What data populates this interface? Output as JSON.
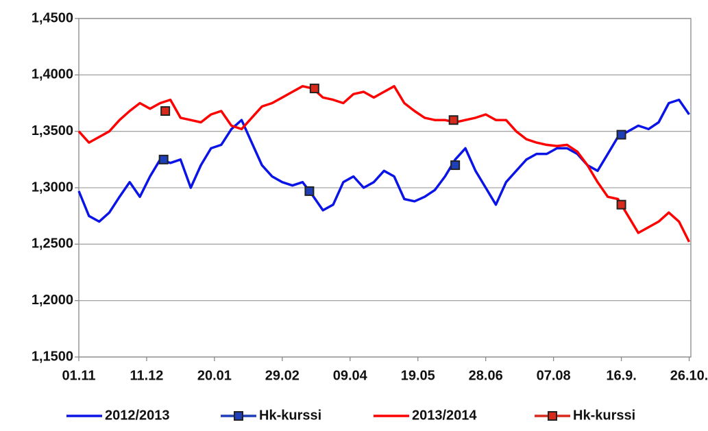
{
  "chart_data": {
    "type": "line",
    "xlim": [
      0,
      361
    ],
    "xticks": [
      {
        "value": 0,
        "label": "01.11"
      },
      {
        "value": 40,
        "label": "11.12"
      },
      {
        "value": 80,
        "label": "20.01"
      },
      {
        "value": 120,
        "label": "29.02"
      },
      {
        "value": 160,
        "label": "09.04"
      },
      {
        "value": 200,
        "label": "19.05"
      },
      {
        "value": 240,
        "label": "28.06"
      },
      {
        "value": 280,
        "label": "07.08"
      },
      {
        "value": 320,
        "label": "16.9."
      },
      {
        "value": 360,
        "label": "26.10."
      }
    ],
    "ylim": [
      1.15,
      1.45
    ],
    "yticks": [
      {
        "value": 1.15,
        "label": "1,1500"
      },
      {
        "value": 1.2,
        "label": "1,2000"
      },
      {
        "value": 1.25,
        "label": "1,2500"
      },
      {
        "value": 1.3,
        "label": "1,3000"
      },
      {
        "value": 1.35,
        "label": "1,3500"
      },
      {
        "value": 1.4,
        "label": "1,4000"
      },
      {
        "value": 1.45,
        "label": "1,4500"
      }
    ],
    "grid": true,
    "legend": "bottom",
    "series": [
      {
        "name": "2012/2013",
        "color": "#0a14e6",
        "style": "line",
        "x": [
          0,
          6,
          12,
          18,
          24,
          30,
          36,
          42,
          48,
          54,
          60,
          66,
          72,
          78,
          84,
          90,
          96,
          102,
          108,
          114,
          120,
          126,
          132,
          138,
          144,
          150,
          156,
          162,
          168,
          174,
          180,
          186,
          192,
          198,
          204,
          210,
          216,
          222,
          228,
          234,
          240,
          246,
          252,
          258,
          264,
          270,
          276,
          282,
          288,
          294,
          300,
          306,
          312,
          318,
          324,
          330,
          336,
          342,
          348,
          354,
          360
        ],
        "values": [
          1.297,
          1.275,
          1.27,
          1.278,
          1.292,
          1.305,
          1.292,
          1.31,
          1.325,
          1.322,
          1.325,
          1.3,
          1.32,
          1.335,
          1.338,
          1.352,
          1.36,
          1.34,
          1.32,
          1.31,
          1.305,
          1.302,
          1.305,
          1.293,
          1.28,
          1.285,
          1.305,
          1.31,
          1.3,
          1.305,
          1.315,
          1.31,
          1.29,
          1.288,
          1.292,
          1.298,
          1.31,
          1.325,
          1.335,
          1.315,
          1.3,
          1.285,
          1.305,
          1.315,
          1.325,
          1.33,
          1.33,
          1.335,
          1.335,
          1.33,
          1.32,
          1.315,
          1.33,
          1.345,
          1.35,
          1.355,
          1.352,
          1.358,
          1.375,
          1.378,
          1.365
        ]
      },
      {
        "name": "Hk-kurssi",
        "color": "#1f3fb8",
        "style": "markers",
        "x": [
          50,
          136,
          222,
          320
        ],
        "values": [
          1.325,
          1.297,
          1.32,
          1.347
        ]
      },
      {
        "name": "2013/2014",
        "color": "#ff0000",
        "style": "line",
        "x": [
          0,
          6,
          12,
          18,
          24,
          30,
          36,
          42,
          48,
          54,
          60,
          66,
          72,
          78,
          84,
          90,
          96,
          102,
          108,
          114,
          120,
          126,
          132,
          138,
          144,
          150,
          156,
          162,
          168,
          174,
          180,
          186,
          192,
          198,
          204,
          210,
          216,
          222,
          228,
          234,
          240,
          246,
          252,
          258,
          264,
          270,
          276,
          282,
          288,
          294,
          300,
          306,
          312,
          318,
          324,
          330,
          336,
          342,
          348,
          354,
          360
        ],
        "values": [
          1.35,
          1.34,
          1.345,
          1.35,
          1.36,
          1.368,
          1.375,
          1.37,
          1.375,
          1.378,
          1.362,
          1.36,
          1.358,
          1.365,
          1.368,
          1.355,
          1.352,
          1.362,
          1.372,
          1.375,
          1.38,
          1.385,
          1.39,
          1.388,
          1.38,
          1.378,
          1.375,
          1.383,
          1.385,
          1.38,
          1.385,
          1.39,
          1.375,
          1.368,
          1.362,
          1.36,
          1.36,
          1.358,
          1.36,
          1.362,
          1.365,
          1.36,
          1.36,
          1.35,
          1.343,
          1.34,
          1.338,
          1.337,
          1.338,
          1.332,
          1.32,
          1.305,
          1.292,
          1.29,
          1.275,
          1.26,
          1.265,
          1.27,
          1.278,
          1.27,
          1.252
        ]
      },
      {
        "name": "Hk-kurssi",
        "color": "#d82a1c",
        "style": "markers",
        "x": [
          51,
          139,
          221,
          320
        ],
        "values": [
          1.368,
          1.388,
          1.36,
          1.285
        ]
      }
    ]
  }
}
